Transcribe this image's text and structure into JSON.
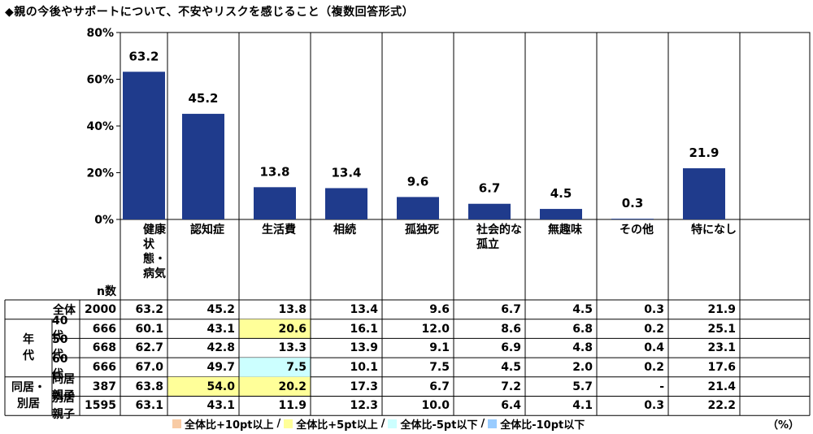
{
  "title": "◆親の今後やサポートについて、不安やリスクを感じること（複数回答形式）",
  "colors": {
    "bar": "#1f3b8c",
    "plus10": "#f8cba5",
    "plus5": "#ffff99",
    "minus5": "#ccffff",
    "minus10": "#99ccff"
  },
  "chart_data": {
    "type": "bar",
    "categories": [
      "健康状態・病気",
      "認知症",
      "生活費",
      "相続",
      "孤独死",
      "社会的な孤立",
      "無趣味",
      "その他",
      "特になし"
    ],
    "values": [
      63.2,
      45.2,
      13.8,
      13.4,
      9.6,
      6.7,
      4.5,
      0.3,
      21.9
    ],
    "ylim": [
      0,
      80
    ],
    "yticks": [
      "0%",
      "20%",
      "40%",
      "60%",
      "80%"
    ]
  },
  "table": {
    "col_headers": [
      "健康\n状態・\n病気",
      "認知症",
      "生活費",
      "相続",
      "孤独死",
      "社会的な\n孤立",
      "無趣味",
      "その他",
      "特になし"
    ],
    "n_label": "n数",
    "groups": [
      {
        "name": "",
        "rows": [
          {
            "label": "全体",
            "n": "2000",
            "values": [
              "63.2",
              "45.2",
              "13.8",
              "13.4",
              "9.6",
              "6.7",
              "4.5",
              "0.3",
              "21.9"
            ],
            "highlight": [
              null,
              null,
              null,
              null,
              null,
              null,
              null,
              null,
              null
            ]
          }
        ]
      },
      {
        "name": "年\n代",
        "rows": [
          {
            "label": "40代",
            "n": "666",
            "values": [
              "60.1",
              "43.1",
              "20.6",
              "16.1",
              "12.0",
              "8.6",
              "6.8",
              "0.2",
              "25.1"
            ],
            "highlight": [
              null,
              null,
              "plus5",
              null,
              null,
              null,
              null,
              null,
              null
            ]
          },
          {
            "label": "50代",
            "n": "668",
            "values": [
              "62.7",
              "42.8",
              "13.3",
              "13.9",
              "9.1",
              "6.9",
              "4.8",
              "0.4",
              "23.1"
            ],
            "highlight": [
              null,
              null,
              null,
              null,
              null,
              null,
              null,
              null,
              null
            ]
          },
          {
            "label": "60代",
            "n": "666",
            "values": [
              "67.0",
              "49.7",
              "7.5",
              "10.1",
              "7.5",
              "4.5",
              "2.0",
              "0.2",
              "17.6"
            ],
            "highlight": [
              null,
              null,
              "minus5",
              null,
              null,
              null,
              null,
              null,
              null
            ]
          }
        ]
      },
      {
        "name": "同居・\n別居",
        "rows": [
          {
            "label": "同居親子",
            "n": "387",
            "values": [
              "63.8",
              "54.0",
              "20.2",
              "17.3",
              "6.7",
              "7.2",
              "5.7",
              "-",
              "21.4"
            ],
            "highlight": [
              null,
              "plus5",
              "plus5",
              null,
              null,
              null,
              null,
              null,
              null
            ]
          },
          {
            "label": "別居親子",
            "n": "1595",
            "values": [
              "63.1",
              "43.1",
              "11.9",
              "12.3",
              "10.0",
              "6.4",
              "4.1",
              "0.3",
              "22.2"
            ],
            "highlight": [
              null,
              null,
              null,
              null,
              null,
              null,
              null,
              null,
              null
            ]
          }
        ]
      }
    ]
  },
  "legend": [
    {
      "key": "plus10",
      "label": "全体比+10pt以上"
    },
    {
      "key": "plus5",
      "label": "全体比+5pt以上"
    },
    {
      "key": "minus5",
      "label": "全体比-5pt以下"
    },
    {
      "key": "minus10",
      "label": "全体比-10pt以下"
    }
  ],
  "unit": "（%）"
}
